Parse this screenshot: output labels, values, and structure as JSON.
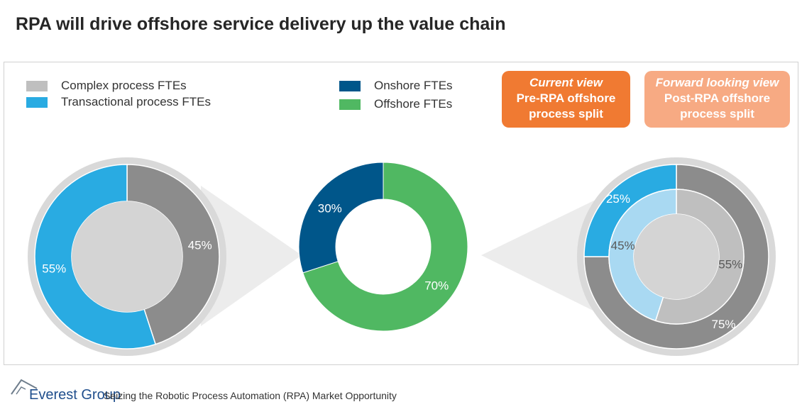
{
  "title": "RPA will drive offshore service delivery up the value chain",
  "legend_left": [
    {
      "label": "Complex process FTEs",
      "color": "#bfbfbf"
    },
    {
      "label": "Transactional process FTEs",
      "color": "#29abe2"
    }
  ],
  "legend_center": [
    {
      "label": "Onshore FTEs",
      "color": "#00568a"
    },
    {
      "label": "Offshore FTEs",
      "color": "#50b862"
    }
  ],
  "current_view": {
    "line1": "Current view",
    "line2": "Pre-RPA offshore",
    "line3": "process split",
    "color": "#f07a32"
  },
  "forward_view": {
    "line1": "Forward looking view",
    "line2": "Post-RPA offshore",
    "line3": "process split",
    "color": "#f7aa83"
  },
  "chart_data": [
    {
      "type": "pie",
      "name": "Pre-RPA offshore process split",
      "slices": [
        {
          "label": "Complex process FTEs",
          "value": 45,
          "display": "45%",
          "color": "#8c8c8c"
        },
        {
          "label": "Transactional process FTEs",
          "value": 55,
          "display": "55%",
          "color": "#29abe2"
        }
      ]
    },
    {
      "type": "pie",
      "name": "Onshore vs offshore FTEs",
      "slices": [
        {
          "label": "Offshore FTEs",
          "value": 70,
          "display": "70%",
          "color": "#50b862"
        },
        {
          "label": "Onshore FTEs",
          "value": 30,
          "display": "30%",
          "color": "#00568a"
        }
      ]
    },
    {
      "type": "pie",
      "name": "Post-RPA offshore process split",
      "rings": [
        {
          "ring": "outer",
          "slices": [
            {
              "label": "Complex process FTEs",
              "value": 75,
              "display": "75%",
              "color": "#8c8c8c"
            },
            {
              "label": "Transactional process FTEs",
              "value": 25,
              "display": "25%",
              "color": "#29abe2"
            }
          ]
        },
        {
          "ring": "inner",
          "slices": [
            {
              "label": "Complex process FTEs",
              "value": 55,
              "display": "55%",
              "color": "#bfbfbf"
            },
            {
              "label": "Transactional process FTEs",
              "value": 45,
              "display": "45%",
              "color": "#a9d9f2"
            }
          ]
        }
      ]
    }
  ],
  "footer": {
    "brand": "Everest Group",
    "text": "Seizing the Robotic Process Automation (RPA) Market Opportunity"
  }
}
